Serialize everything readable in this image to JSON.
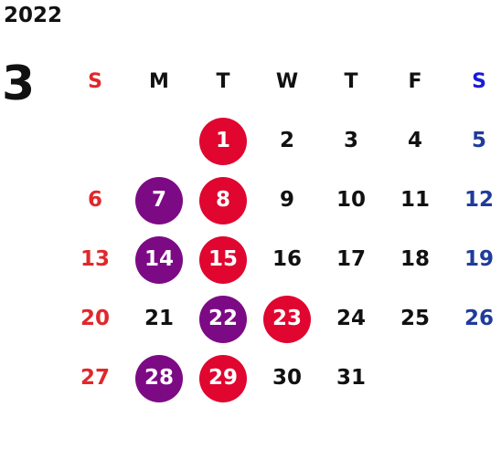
{
  "year": "2022",
  "month": "3",
  "colors": {
    "sunday": "#e0282c",
    "saturday": "#1e3c9a",
    "weekday": "#111111",
    "highlight_red": "#e0062f",
    "highlight_purple": "#7d0a85"
  },
  "weekdays": [
    "S",
    "M",
    "T",
    "W",
    "T",
    "F",
    "S"
  ],
  "weeks": [
    [
      null,
      null,
      {
        "day": "1",
        "mark": "red"
      },
      {
        "day": "2"
      },
      {
        "day": "3"
      },
      {
        "day": "4"
      },
      {
        "day": "5"
      }
    ],
    [
      {
        "day": "6"
      },
      {
        "day": "7",
        "mark": "purple"
      },
      {
        "day": "8",
        "mark": "red"
      },
      {
        "day": "9"
      },
      {
        "day": "10"
      },
      {
        "day": "11"
      },
      {
        "day": "12"
      }
    ],
    [
      {
        "day": "13"
      },
      {
        "day": "14",
        "mark": "purple"
      },
      {
        "day": "15",
        "mark": "red"
      },
      {
        "day": "16"
      },
      {
        "day": "17"
      },
      {
        "day": "18"
      },
      {
        "day": "19"
      }
    ],
    [
      {
        "day": "20"
      },
      {
        "day": "21"
      },
      {
        "day": "22",
        "mark": "purple"
      },
      {
        "day": "23",
        "mark": "red"
      },
      {
        "day": "24"
      },
      {
        "day": "25"
      },
      {
        "day": "26"
      }
    ],
    [
      {
        "day": "27"
      },
      {
        "day": "28",
        "mark": "purple"
      },
      {
        "day": "29",
        "mark": "red"
      },
      {
        "day": "30"
      },
      {
        "day": "31"
      },
      null,
      null
    ]
  ]
}
